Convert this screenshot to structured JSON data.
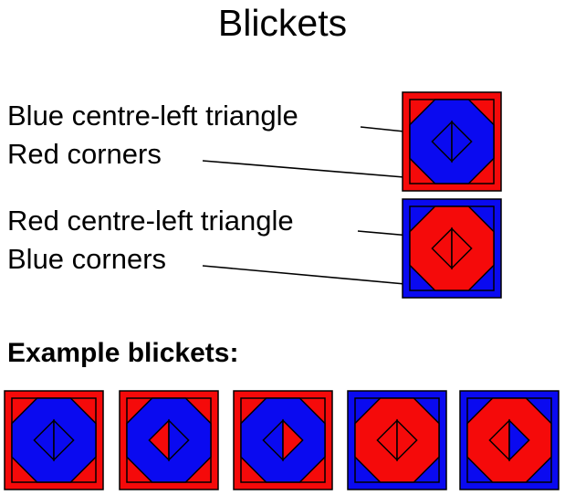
{
  "title": "Blickets",
  "rules": [
    {
      "label": "Blue centre-left triangle"
    },
    {
      "label": "Red corners"
    },
    {
      "label": "Red centre-left triangle"
    },
    {
      "label": "Blue corners"
    }
  ],
  "examples_label": "Example blickets:",
  "colors": {
    "blue": "#0a0af0",
    "red": "#f50a0a",
    "outline": "#000000"
  },
  "diagrams": [
    {
      "role": "rule",
      "fill": "blue",
      "corners": "red",
      "left_triangle": "blue",
      "right_triangle": "blue"
    },
    {
      "role": "rule",
      "fill": "red",
      "corners": "blue",
      "left_triangle": "red",
      "right_triangle": "red"
    }
  ],
  "examples": [
    {
      "fill": "blue",
      "corners": "red",
      "left_triangle": "blue",
      "right_triangle": "blue"
    },
    {
      "fill": "blue",
      "corners": "red",
      "left_triangle": "red",
      "right_triangle": "blue"
    },
    {
      "fill": "blue",
      "corners": "red",
      "left_triangle": "blue",
      "right_triangle": "red"
    },
    {
      "fill": "red",
      "corners": "blue",
      "left_triangle": "red",
      "right_triangle": "red"
    },
    {
      "fill": "red",
      "corners": "blue",
      "left_triangle": "red",
      "right_triangle": "blue"
    }
  ]
}
